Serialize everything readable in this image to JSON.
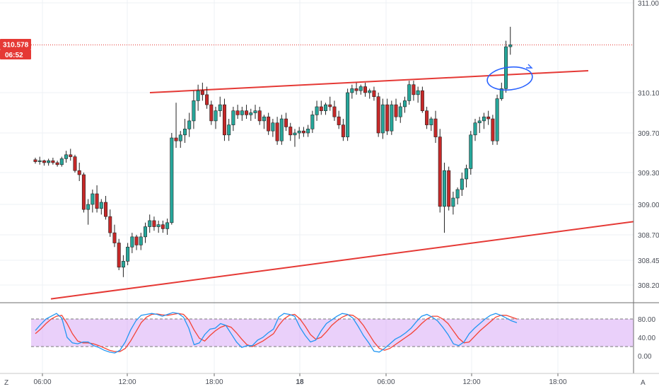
{
  "chart_data": [
    {
      "type": "candlestick",
      "title": "",
      "colors": {
        "up": "#26a69a",
        "down": "#c62828",
        "trendline": "#e53935",
        "ellipse": "#2962ff",
        "price_line": "#e53935"
      },
      "x_ticks": [
        "06:00",
        "12:00",
        "18:00",
        "18",
        "06:00",
        "12:00",
        "18:00"
      ],
      "y_ticks": [
        "311.000",
        "310.100",
        "309.700",
        "309.300",
        "309.000",
        "308.700",
        "308.450",
        "308.200"
      ],
      "y_ticks_values": [
        311.0,
        310.1,
        309.7,
        309.3,
        309.0,
        308.7,
        308.45,
        308.2
      ],
      "last_price": {
        "label": "310.578",
        "value": 310.578
      },
      "countdown": "06:52",
      "candles": [
        [
          309.43,
          309.45,
          309.39,
          309.41
        ],
        [
          309.41,
          309.46,
          309.38,
          309.42
        ],
        [
          309.42,
          309.43,
          309.37,
          309.4
        ],
        [
          309.4,
          309.44,
          309.37,
          309.42
        ],
        [
          309.42,
          309.45,
          309.38,
          309.4
        ],
        [
          309.4,
          309.42,
          309.36,
          309.38
        ],
        [
          309.38,
          309.46,
          309.36,
          309.44
        ],
        [
          309.44,
          309.52,
          309.4,
          309.48
        ],
        [
          309.48,
          309.54,
          309.42,
          309.46
        ],
        [
          309.46,
          309.48,
          309.3,
          309.32
        ],
        [
          309.32,
          309.4,
          309.22,
          309.28
        ],
        [
          309.28,
          309.3,
          308.92,
          308.95
        ],
        [
          308.95,
          309.05,
          308.8,
          309.0
        ],
        [
          309.0,
          309.14,
          308.92,
          309.1
        ],
        [
          309.1,
          309.18,
          308.92,
          308.96
        ],
        [
          308.96,
          309.05,
          308.9,
          309.02
        ],
        [
          309.02,
          309.08,
          308.85,
          308.88
        ],
        [
          308.88,
          308.95,
          308.68,
          308.72
        ],
        [
          308.72,
          308.8,
          308.58,
          308.62
        ],
        [
          308.62,
          308.66,
          308.35,
          308.38
        ],
        [
          308.38,
          308.5,
          308.28,
          308.44
        ],
        [
          308.44,
          308.62,
          308.4,
          308.58
        ],
        [
          308.58,
          308.72,
          308.52,
          308.68
        ],
        [
          308.68,
          308.7,
          308.55,
          308.6
        ],
        [
          308.6,
          308.72,
          308.55,
          308.68
        ],
        [
          308.68,
          308.82,
          308.62,
          308.78
        ],
        [
          308.78,
          308.9,
          308.72,
          308.84
        ],
        [
          308.84,
          308.88,
          308.74,
          308.78
        ],
        [
          308.78,
          308.84,
          308.72,
          308.8
        ],
        [
          308.8,
          308.84,
          308.72,
          308.76
        ],
        [
          308.76,
          308.86,
          308.7,
          308.82
        ],
        [
          308.82,
          309.7,
          308.8,
          309.65
        ],
        [
          309.65,
          310.0,
          309.55,
          309.62
        ],
        [
          309.62,
          309.72,
          309.55,
          309.68
        ],
        [
          309.68,
          309.84,
          309.6,
          309.74
        ],
        [
          309.74,
          309.9,
          309.66,
          309.82
        ],
        [
          309.82,
          310.12,
          309.74,
          310.02
        ],
        [
          310.02,
          310.18,
          309.92,
          310.12
        ],
        [
          310.12,
          310.2,
          310.02,
          310.08
        ],
        [
          310.08,
          310.16,
          309.94,
          309.98
        ],
        [
          309.98,
          310.02,
          309.78,
          309.82
        ],
        [
          309.82,
          309.96,
          309.74,
          309.92
        ],
        [
          309.92,
          310.06,
          309.86,
          309.98
        ],
        [
          309.98,
          310.04,
          309.62,
          309.68
        ],
        [
          309.68,
          309.84,
          309.62,
          309.78
        ],
        [
          309.78,
          309.96,
          309.72,
          309.92
        ],
        [
          309.92,
          309.98,
          309.84,
          309.88
        ],
        [
          309.88,
          309.96,
          309.82,
          309.92
        ],
        [
          309.92,
          309.98,
          309.84,
          309.88
        ],
        [
          309.88,
          309.94,
          309.82,
          309.9
        ],
        [
          309.9,
          309.98,
          309.84,
          309.92
        ],
        [
          309.92,
          309.96,
          309.78,
          309.82
        ],
        [
          309.82,
          309.88,
          309.74,
          309.86
        ],
        [
          309.86,
          309.9,
          309.68,
          309.72
        ],
        [
          309.72,
          309.84,
          309.66,
          309.8
        ],
        [
          309.8,
          309.86,
          309.58,
          309.62
        ],
        [
          309.62,
          309.88,
          309.58,
          309.84
        ],
        [
          309.84,
          309.9,
          309.72,
          309.76
        ],
        [
          309.76,
          309.8,
          309.62,
          309.68
        ],
        [
          309.68,
          309.74,
          309.56,
          309.7
        ],
        [
          309.7,
          309.76,
          309.64,
          309.72
        ],
        [
          309.72,
          309.76,
          309.66,
          309.7
        ],
        [
          309.7,
          309.78,
          309.66,
          309.74
        ],
        [
          309.74,
          309.92,
          309.7,
          309.88
        ],
        [
          309.88,
          310.02,
          309.82,
          309.96
        ],
        [
          309.96,
          310.02,
          309.88,
          309.92
        ],
        [
          309.92,
          310.0,
          309.88,
          309.98
        ],
        [
          309.98,
          310.06,
          309.92,
          309.96
        ],
        [
          309.96,
          310.02,
          309.82,
          309.86
        ],
        [
          309.86,
          309.92,
          309.74,
          309.78
        ],
        [
          309.78,
          309.84,
          309.62,
          309.66
        ],
        [
          309.66,
          310.14,
          309.62,
          310.1
        ],
        [
          310.1,
          310.18,
          310.04,
          310.14
        ],
        [
          310.14,
          310.2,
          310.08,
          310.12
        ],
        [
          310.12,
          310.18,
          310.08,
          310.16
        ],
        [
          310.16,
          310.2,
          310.06,
          310.1
        ],
        [
          310.1,
          310.14,
          310.04,
          310.12
        ],
        [
          310.12,
          310.16,
          310.02,
          310.06
        ],
        [
          310.06,
          310.1,
          309.66,
          309.7
        ],
        [
          309.7,
          310.04,
          309.64,
          309.98
        ],
        [
          309.98,
          310.04,
          309.68,
          309.72
        ],
        [
          309.72,
          310.02,
          309.68,
          309.98
        ],
        [
          309.98,
          310.04,
          309.82,
          309.86
        ],
        [
          309.86,
          310.0,
          309.8,
          309.96
        ],
        [
          309.96,
          310.06,
          309.9,
          310.02
        ],
        [
          310.02,
          310.22,
          309.98,
          310.18
        ],
        [
          310.18,
          310.22,
          310.02,
          310.08
        ],
        [
          310.08,
          310.16,
          310.0,
          310.12
        ],
        [
          310.12,
          310.16,
          309.9,
          309.92
        ],
        [
          309.92,
          309.96,
          309.74,
          309.78
        ],
        [
          309.78,
          309.86,
          309.72,
          309.84
        ],
        [
          309.84,
          309.92,
          309.6,
          309.66
        ],
        [
          309.66,
          309.74,
          308.92,
          308.98
        ],
        [
          308.98,
          309.4,
          308.72,
          309.32
        ],
        [
          309.32,
          309.36,
          308.94,
          308.98
        ],
        [
          308.98,
          309.12,
          308.9,
          309.06
        ],
        [
          309.06,
          309.16,
          309.0,
          309.14
        ],
        [
          309.14,
          309.3,
          309.08,
          309.24
        ],
        [
          309.24,
          309.38,
          309.16,
          309.34
        ],
        [
          309.34,
          309.72,
          309.28,
          309.68
        ],
        [
          309.68,
          309.84,
          309.62,
          309.8
        ],
        [
          309.8,
          309.86,
          309.7,
          309.82
        ],
        [
          309.82,
          309.9,
          309.74,
          309.86
        ],
        [
          309.86,
          309.92,
          309.78,
          309.84
        ],
        [
          309.84,
          309.88,
          309.58,
          309.62
        ],
        [
          309.62,
          310.08,
          309.58,
          310.04
        ],
        [
          310.04,
          310.2,
          310.02,
          310.14
        ],
        [
          310.14,
          310.62,
          310.1,
          310.56
        ],
        [
          310.56,
          310.76,
          310.48,
          310.58
        ]
      ],
      "trendlines": [
        {
          "name": "upper",
          "x1_bar": 21,
          "y1": 310.1,
          "x2_bar": 101,
          "y2": 310.32
        },
        {
          "name": "lower",
          "x1_bar": 0,
          "y1": 308.06,
          "x2_bar": 120,
          "y2": 308.83
        }
      ]
    },
    {
      "type": "line",
      "name": "stochastic",
      "y_ticks": [
        "80.00",
        "40.00",
        "0.00"
      ],
      "y_ticks_values": [
        80,
        40,
        0
      ],
      "band": [
        20,
        80
      ],
      "colors": {
        "k": "#2196f3",
        "d": "#f44336",
        "band": "#d8a9f5"
      },
      "k": [
        55,
        68,
        80,
        86,
        92,
        82,
        40,
        28,
        26,
        30,
        30,
        22,
        18,
        12,
        8,
        6,
        12,
        30,
        56,
        76,
        88,
        90,
        92,
        90,
        86,
        90,
        94,
        92,
        84,
        60,
        24,
        28,
        46,
        58,
        60,
        70,
        66,
        48,
        30,
        18,
        22,
        22,
        34,
        40,
        50,
        58,
        84,
        92,
        90,
        86,
        62,
        44,
        30,
        34,
        54,
        70,
        78,
        86,
        92,
        90,
        82,
        64,
        44,
        28,
        10,
        8,
        16,
        26,
        36,
        42,
        50,
        60,
        74,
        86,
        90,
        84,
        76,
        62,
        46,
        26,
        22,
        30,
        48,
        60,
        70,
        80,
        88,
        92,
        88,
        82,
        76,
        72
      ],
      "d": [
        48,
        58,
        70,
        80,
        86,
        88,
        70,
        48,
        32,
        28,
        28,
        26,
        22,
        17,
        12,
        9,
        9,
        16,
        32,
        52,
        72,
        84,
        90,
        91,
        89,
        88,
        90,
        92,
        90,
        78,
        56,
        38,
        32,
        44,
        54,
        62,
        66,
        62,
        50,
        36,
        24,
        20,
        26,
        32,
        40,
        48,
        66,
        80,
        88,
        90,
        80,
        64,
        46,
        36,
        40,
        52,
        66,
        76,
        84,
        89,
        88,
        80,
        66,
        48,
        30,
        16,
        12,
        16,
        24,
        32,
        40,
        48,
        58,
        70,
        80,
        86,
        86,
        80,
        70,
        54,
        38,
        28,
        30,
        42,
        54,
        64,
        74,
        84,
        88,
        88,
        84,
        80
      ]
    }
  ],
  "ui": {
    "corner_left": "Z",
    "corner_right": "A"
  }
}
